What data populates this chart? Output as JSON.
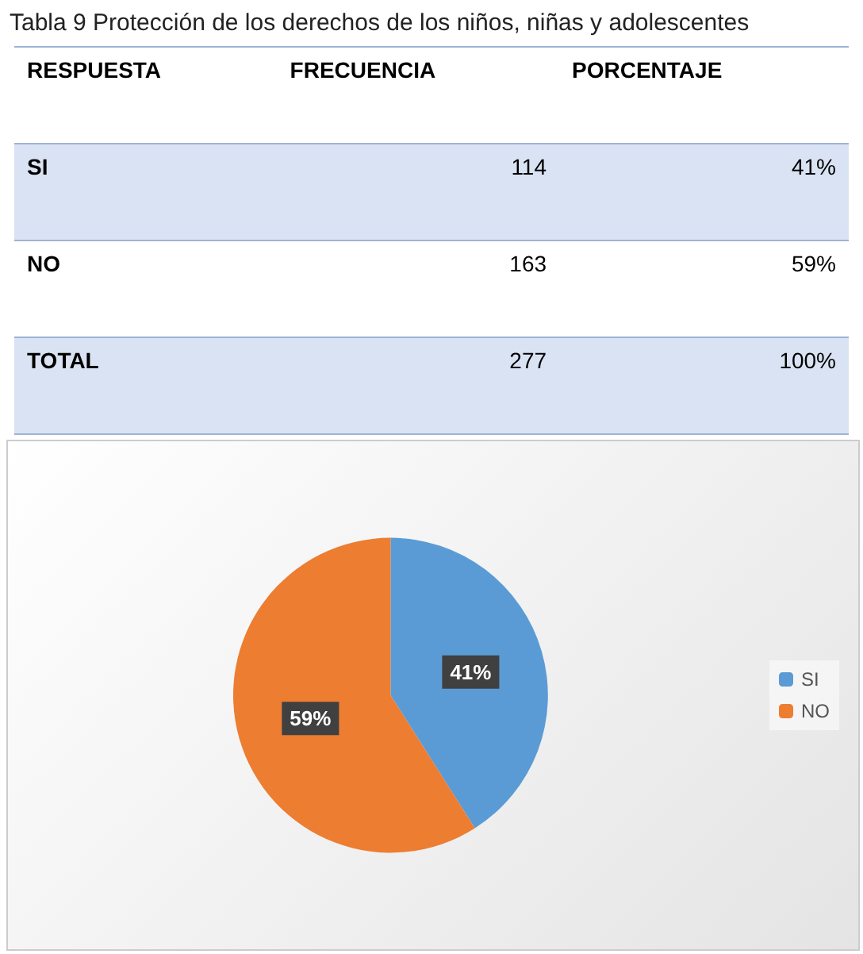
{
  "chart_data": [
    {
      "type": "other",
      "title": "Tabla 9 Protección de los derechos de los niños, niñas y adolescentes",
      "annotations": [
        "RESPUESTA",
        "FRECUENCIA",
        "PORCENTAJE",
        "SI",
        "114",
        "41%",
        "NO",
        "163",
        "59%",
        "TOTAL",
        "277",
        "100%"
      ]
    },
    {
      "type": "pie",
      "categories": [
        "SI",
        "NO"
      ],
      "values": [
        41,
        59
      ],
      "colors": [
        "#5b9bd5",
        "#ed7d31"
      ],
      "value_labels": [
        "41%",
        "59%"
      ],
      "legend": "right"
    }
  ]
}
